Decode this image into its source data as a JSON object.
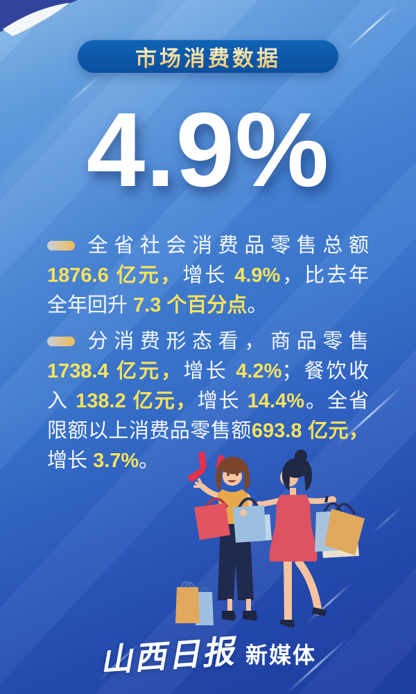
{
  "header": {
    "badge_label": "市场消费数据",
    "headline": "4.9%"
  },
  "paragraphs": [
    {
      "lines": [
        {
          "justify": true,
          "bullet": true,
          "segments": [
            {
              "style": "white",
              "text": "全省社会消费品零售总额"
            }
          ]
        },
        {
          "justify": true,
          "segments": [
            {
              "style": "yellow",
              "text": "1876.6 亿元，"
            },
            {
              "style": "white",
              "text": "增长 "
            },
            {
              "style": "yellow",
              "text": "4.9%"
            },
            {
              "style": "white",
              "text": "，比去年"
            }
          ]
        },
        {
          "justify": false,
          "segments": [
            {
              "style": "white",
              "text": "全年回升 "
            },
            {
              "style": "yellow",
              "text": "7.3 个百分点"
            },
            {
              "style": "white",
              "text": "。"
            }
          ]
        }
      ]
    },
    {
      "lines": [
        {
          "justify": true,
          "bullet": true,
          "segments": [
            {
              "style": "white",
              "text": "分消费形态看，商品零售"
            }
          ]
        },
        {
          "justify": true,
          "segments": [
            {
              "style": "yellow",
              "text": "1738.4 亿元，"
            },
            {
              "style": "white",
              "text": "增长 "
            },
            {
              "style": "yellow",
              "text": "4.2%"
            },
            {
              "style": "white",
              "text": "；餐饮收"
            }
          ]
        },
        {
          "justify": true,
          "segments": [
            {
              "style": "white",
              "text": "入 "
            },
            {
              "style": "yellow",
              "text": "138.2 亿元，"
            },
            {
              "style": "white",
              "text": "增长 "
            },
            {
              "style": "yellow",
              "text": "14.4%"
            },
            {
              "style": "white",
              "text": "。全省"
            }
          ]
        },
        {
          "justify": true,
          "segments": [
            {
              "style": "white",
              "text": "限额以上消费品零售额"
            },
            {
              "style": "yellow",
              "text": "693.8 亿元，"
            }
          ]
        },
        {
          "justify": false,
          "segments": [
            {
              "style": "white",
              "text": "增长 "
            },
            {
              "style": "yellow",
              "text": "3.7%"
            },
            {
              "style": "white",
              "text": "。"
            }
          ]
        }
      ]
    }
  ],
  "footer": {
    "logo_script": "山西日报",
    "logo_suffix": "新媒体"
  },
  "icons": {
    "bullet": "gold-swoosh-pill",
    "emphasis": "red-exclamation-burst",
    "corner": "page-curl-top-left"
  },
  "illustration_alt": "两位拎购物袋的女性插画",
  "colors": {
    "background_top": "#8abbea",
    "background_bottom": "#1e3da0",
    "badge_background": "#0b549f",
    "badge_text_gold": "#f3d88e",
    "highlight_yellow": "#f7e35c",
    "body_text_white": "#f6faff",
    "accent_red": "#e8304a"
  }
}
